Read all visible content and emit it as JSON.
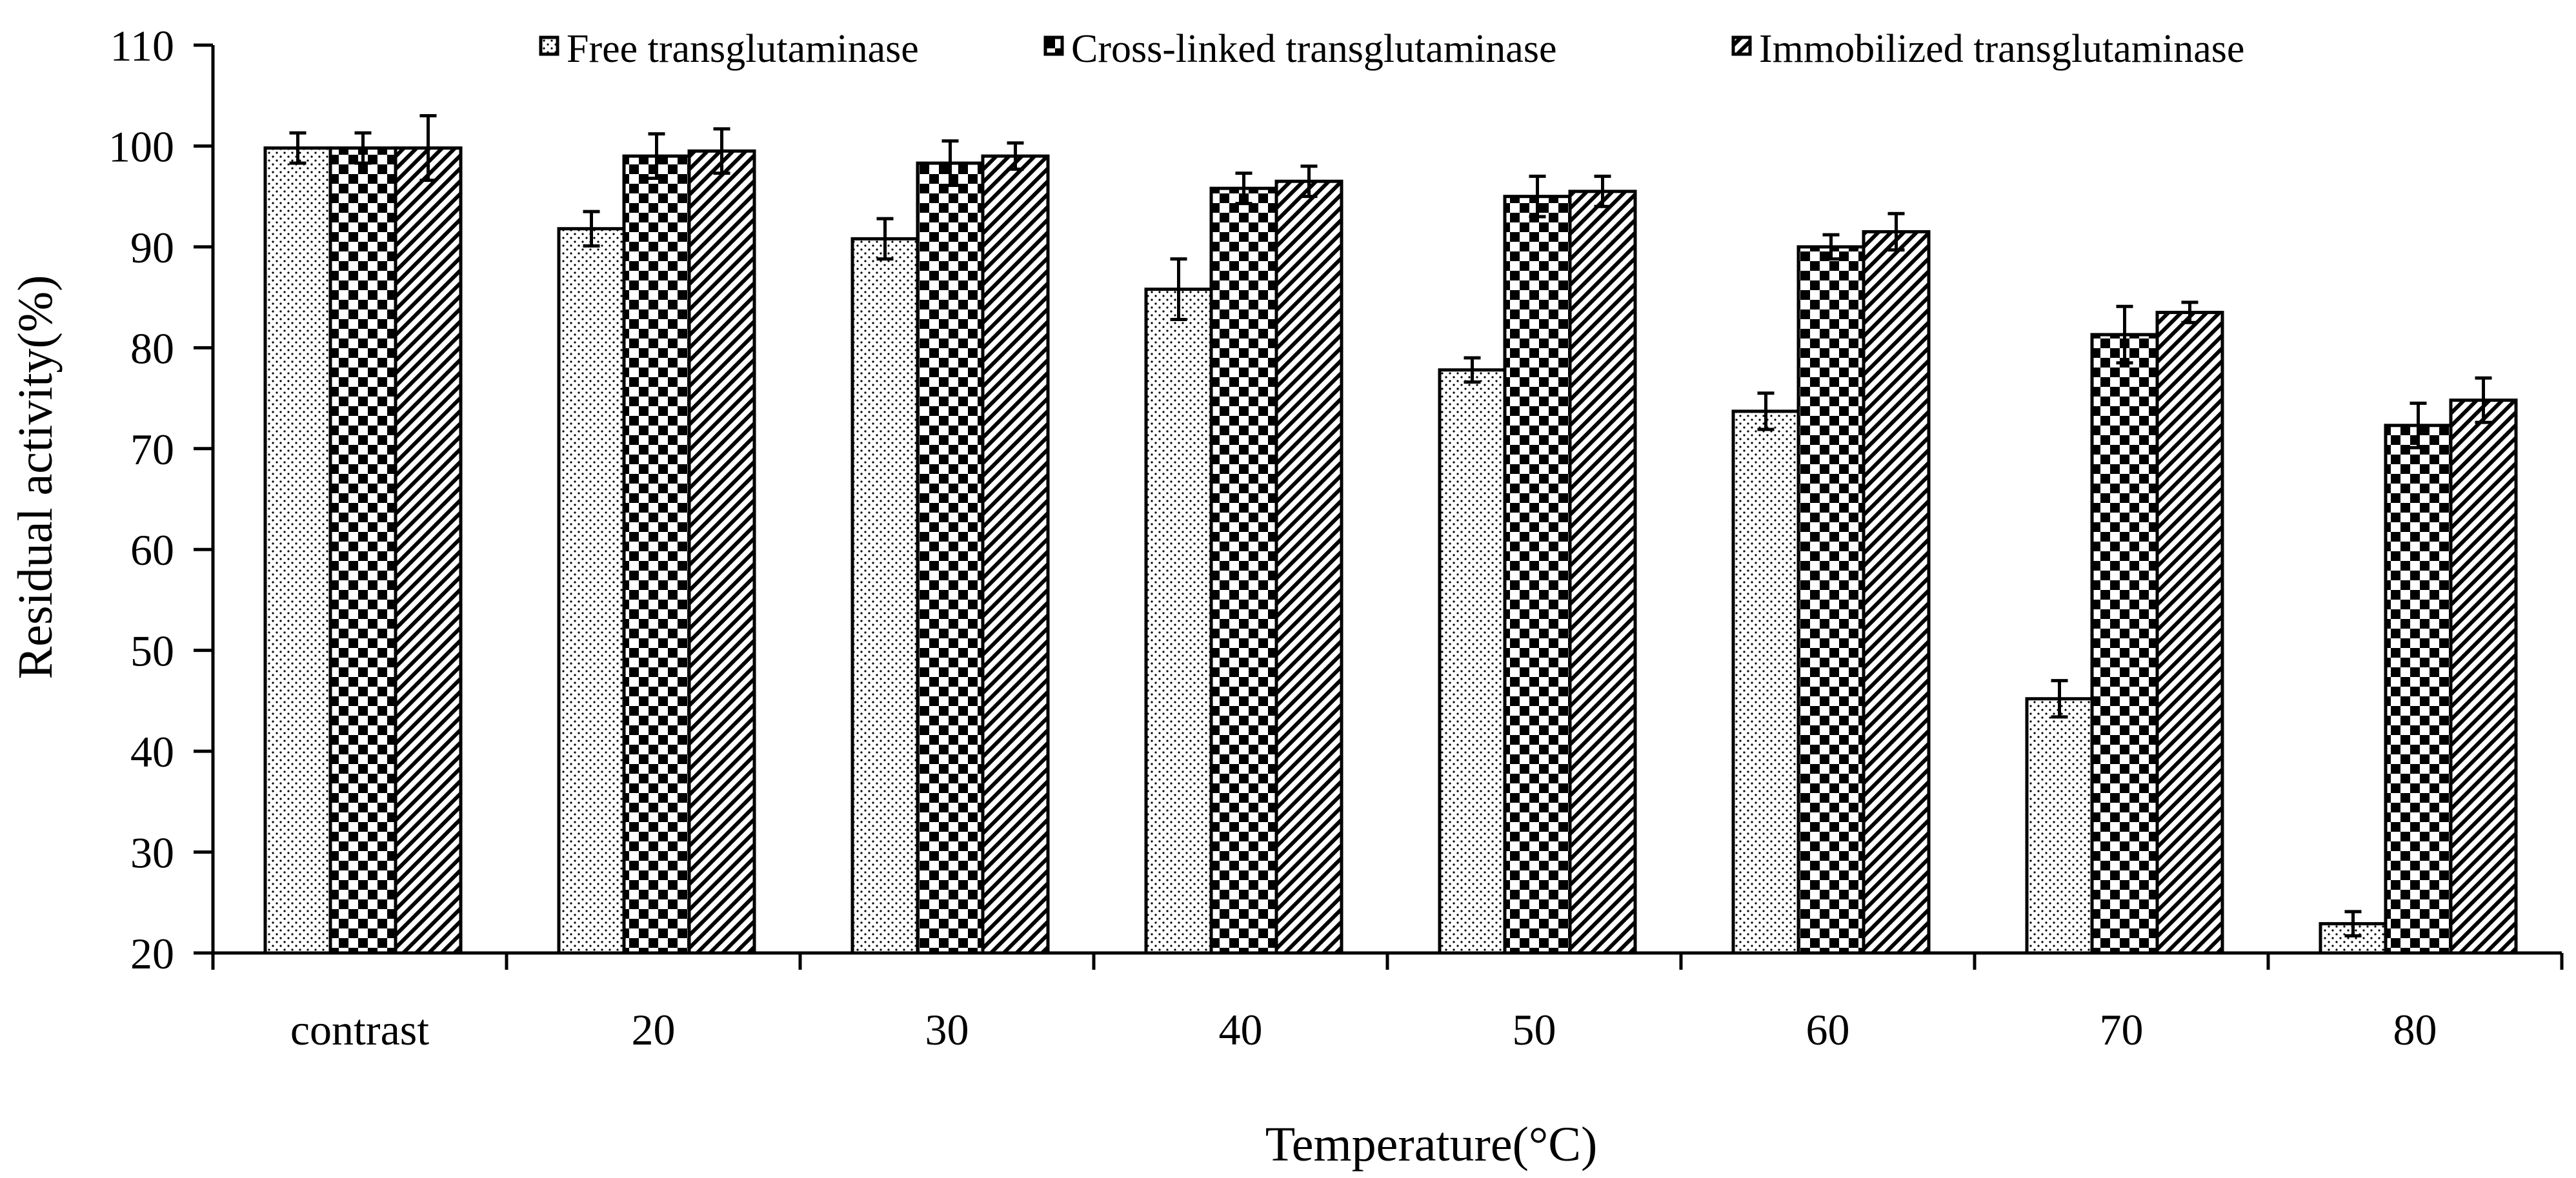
{
  "chart_data": {
    "type": "bar",
    "title": "",
    "xlabel": "Temperature(°C)",
    "ylabel": "Residual activity(%)",
    "ylim": [
      20,
      110
    ],
    "yticks": [
      20,
      30,
      40,
      50,
      60,
      70,
      80,
      90,
      100,
      110
    ],
    "grid": false,
    "legend_position": "top",
    "categories": [
      "contrast",
      "20",
      "30",
      "40",
      "50",
      "60",
      "70",
      "80"
    ],
    "series": [
      {
        "name": "Free transglutaminase",
        "pattern": "dots",
        "values": [
          99.8,
          91.8,
          90.8,
          85.8,
          77.8,
          73.7,
          45.2,
          22.9
        ],
        "errors": [
          1.5,
          1.7,
          2.0,
          3.0,
          1.2,
          1.8,
          1.8,
          1.2
        ]
      },
      {
        "name": "Cross-linked transglutaminase",
        "pattern": "checker",
        "values": [
          99.8,
          99.0,
          98.3,
          95.8,
          95.0,
          90.0,
          81.3,
          72.3
        ],
        "errors": [
          1.5,
          2.2,
          2.2,
          1.5,
          2.0,
          1.2,
          2.8,
          2.2
        ]
      },
      {
        "name": "Immobilized transglutaminase",
        "pattern": "diagonal",
        "values": [
          99.8,
          99.5,
          99.0,
          96.5,
          95.5,
          91.5,
          83.5,
          74.8
        ],
        "errors": [
          3.2,
          2.2,
          1.3,
          1.5,
          1.5,
          1.8,
          1.0,
          2.2
        ]
      }
    ],
    "colors": {
      "bar_stroke": "#000000",
      "axis": "#000000",
      "background": "#ffffff"
    }
  }
}
